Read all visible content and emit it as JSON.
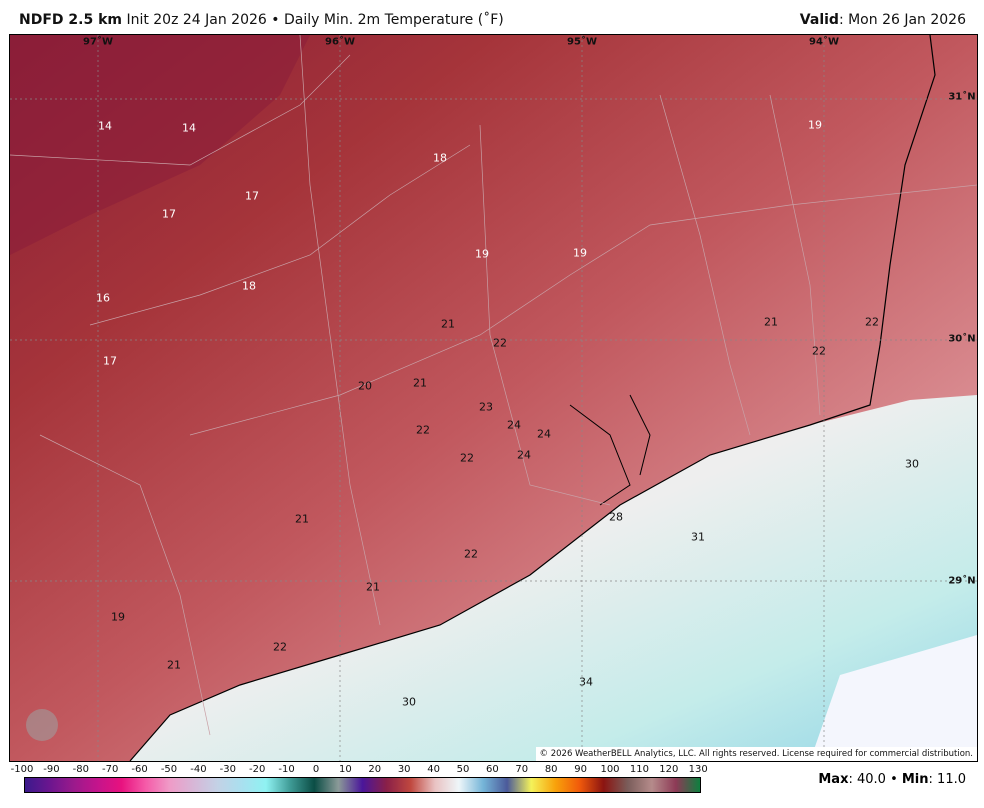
{
  "header": {
    "model": "NDFD 2.5 km",
    "init": "Init 20z 24 Jan 2026",
    "bullet": "•",
    "product": "Daily Min. 2m Temperature (˚F)",
    "valid_label": "Valid",
    "valid_value": ": Mon 26 Jan 2026"
  },
  "axes": {
    "lon": [
      "97˚W",
      "96˚W",
      "95˚W",
      "94˚W"
    ],
    "lat": [
      "31˚N",
      "30˚N",
      "29˚N"
    ]
  },
  "labels": [
    "14",
    "14",
    "17",
    "17",
    "18",
    "19",
    "19",
    "19",
    "16",
    "18",
    "17",
    "21",
    "22",
    "21",
    "22",
    "22",
    "20",
    "21",
    "23",
    "24",
    "24",
    "22",
    "22",
    "24",
    "30",
    "21",
    "28",
    "31",
    "22",
    "21",
    "19",
    "22",
    "21",
    "34",
    "30"
  ],
  "copyright": "© 2026 WeatherBELL Analytics, LLC. All rights reserved. License required for commercial distribution.",
  "logo": "WeatherBELL",
  "colorbar": {
    "ticks": [
      "-100",
      "-90",
      "-80",
      "-70",
      "-60",
      "-50",
      "-40",
      "-30",
      "-20",
      "-10",
      "0",
      "10",
      "20",
      "30",
      "40",
      "50",
      "60",
      "70",
      "80",
      "90",
      "100",
      "110",
      "120",
      "130"
    ],
    "colors": [
      "#3b1a8c",
      "#6a168f",
      "#9a1a8c",
      "#c4148c",
      "#e8127f",
      "#f55aa8",
      "#ef9bc7",
      "#d7b7d7",
      "#c3d2e6",
      "#a9e0ef",
      "#8ff2f2",
      "#3f9b96",
      "#0b4d45",
      "#8b9a98",
      "#4a169a",
      "#8a2048",
      "#c0483f",
      "#e9c2c2",
      "#eef6f9",
      "#75b5d8",
      "#4b5a9a",
      "#f4f25a",
      "#f8a20b",
      "#f15a0b",
      "#8b1411",
      "#7a5d5a",
      "#b58b8b",
      "#8d3a56",
      "#0e7f3f"
    ]
  },
  "stats": {
    "max_label": "Max",
    "max_value": ": 40.0",
    "sep": " • ",
    "min_label": "Min",
    "min_value": ": 11.0"
  }
}
